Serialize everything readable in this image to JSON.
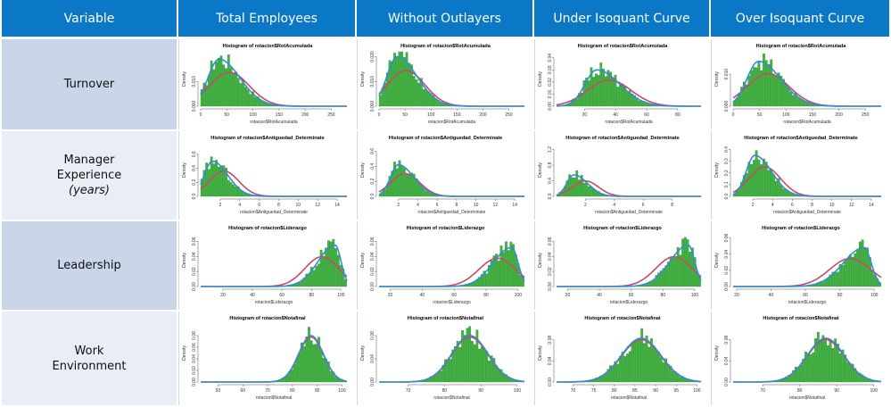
{
  "header": {
    "variable": "Variable",
    "columns": [
      "Total Employees",
      "Without Outlayers",
      "Under Isoquant Curve",
      "Over Isoquant Curve"
    ]
  },
  "rows": [
    {
      "label_lines": [
        "Turnover"
      ],
      "italic": ""
    },
    {
      "label_lines": [
        "Manager",
        "Experience"
      ],
      "italic": "(years)"
    },
    {
      "label_lines": [
        "Leadership"
      ],
      "italic": ""
    },
    {
      "label_lines": [
        "Work",
        "Environment"
      ],
      "italic": ""
    }
  ],
  "colors": {
    "header_bg": "#0a78c6",
    "bars": "#3fb53f",
    "normal_curve": "#c74a66",
    "density_curve": "#2f8fd0"
  },
  "chart_data": [
    {
      "type": "bar",
      "row": 0,
      "col": 0,
      "title": "Histogram of rotacion$RotAcumulada",
      "xlabel": "rotacion$RotAcumulada",
      "ylabel": "Density",
      "xlim": [
        0,
        280
      ],
      "ylim": [
        0,
        0.022
      ],
      "xticks": [
        0,
        50,
        100,
        150,
        200,
        250
      ],
      "yticks": [
        "0.000",
        "0.010"
      ],
      "ytick_vals": [
        0,
        0.01
      ],
      "mean": 55,
      "sd": 38,
      "mode": 35,
      "peak": 0.019,
      "skew": "right"
    },
    {
      "type": "bar",
      "row": 0,
      "col": 1,
      "title": "Histogram of rotacion$RotAcumulada",
      "xlabel": "rotacion$RotAcumulada",
      "ylabel": "Density",
      "xlim": [
        0,
        280
      ],
      "ylim": [
        0,
        0.022
      ],
      "xticks": [
        0,
        50,
        100,
        150,
        200,
        250
      ],
      "yticks": [
        "0.000",
        "0.010",
        "0.020"
      ],
      "ytick_vals": [
        0,
        0.01,
        0.02
      ],
      "mean": 52,
      "sd": 36,
      "mode": 35,
      "peak": 0.02,
      "skew": "right"
    },
    {
      "type": "bar",
      "row": 0,
      "col": 2,
      "title": "Histogram of rotacion$RotAcumulada",
      "xlabel": "rotacion$RotAcumulada",
      "ylabel": "Density",
      "xlim": [
        2,
        95
      ],
      "ylim": [
        0,
        0.045
      ],
      "xticks": [
        20,
        40,
        60,
        80
      ],
      "yticks": [
        "0.00",
        "0.01",
        "0.02",
        "0.03",
        "0.04"
      ],
      "ytick_vals": [
        0,
        0.01,
        0.02,
        0.03,
        0.04
      ],
      "mean": 36,
      "sd": 14,
      "mode": 28,
      "peak": 0.03,
      "skew": "right"
    },
    {
      "type": "bar",
      "row": 0,
      "col": 3,
      "title": "Histogram of rotacion$RotAcumulada",
      "xlabel": "rotacion$RotAcumulada",
      "ylabel": "Density",
      "xlim": [
        0,
        280
      ],
      "ylim": [
        0,
        0.017
      ],
      "xticks": [
        0,
        50,
        100,
        150,
        200,
        250
      ],
      "yticks": [
        "0.000",
        "0.010"
      ],
      "ytick_vals": [
        0,
        0.01
      ],
      "mean": 66,
      "sd": 40,
      "mode": 48,
      "peak": 0.014,
      "skew": "right"
    },
    {
      "type": "bar",
      "row": 1,
      "col": 0,
      "title": "Histogram of rotacion$Antiguedad_Determinate",
      "xlabel": "rotacion$Antiguedad_Determinate",
      "ylabel": "Density",
      "xlim": [
        0,
        15
      ],
      "ylim": [
        0,
        0.75
      ],
      "xticks": [
        2,
        4,
        6,
        8,
        10,
        12,
        14
      ],
      "yticks": [
        "0.0",
        "0.2",
        "0.4",
        "0.6"
      ],
      "ytick_vals": [
        0,
        0.2,
        0.4,
        0.6
      ],
      "mean": 2.4,
      "sd": 1.5,
      "mode": 1.2,
      "peak": 0.5,
      "skew": "right"
    },
    {
      "type": "bar",
      "row": 1,
      "col": 1,
      "title": "Histogram of rotacion$Antiguedad_Determinate",
      "xlabel": "rotacion$Antiguedad_Determinate",
      "ylabel": "Density",
      "xlim": [
        0,
        15
      ],
      "ylim": [
        0,
        0.7
      ],
      "xticks": [
        2,
        4,
        6,
        8,
        10,
        12,
        14
      ],
      "yticks": [
        "0.0",
        "0.2",
        "0.4",
        "0.6"
      ],
      "ytick_vals": [
        0,
        0.2,
        0.4,
        0.6
      ],
      "mean": 2.7,
      "sd": 1.5,
      "mode": 2,
      "peak": 0.42,
      "skew": "right"
    },
    {
      "type": "bar",
      "row": 1,
      "col": 2,
      "title": "Histogram of rotacion$Antiguedad_Determinate",
      "xlabel": "rotacion$Antiguedad_Determinate",
      "ylabel": "Density",
      "xlim": [
        0,
        10
      ],
      "ylim": [
        0,
        1.35
      ],
      "xticks": [
        2,
        4,
        6,
        8
      ],
      "yticks": [
        "0.0",
        "0.4",
        "0.8",
        "1.2"
      ],
      "ytick_vals": [
        0,
        0.4,
        0.8,
        1.2
      ],
      "mean": 2.0,
      "sd": 0.9,
      "mode": 1.2,
      "peak": 0.55,
      "skew": "right"
    },
    {
      "type": "bar",
      "row": 1,
      "col": 3,
      "title": "Histogram of rotacion$Antiguedad_Determinate",
      "xlabel": "rotacion$Antiguedad_Determinate",
      "ylabel": "Density",
      "xlim": [
        0,
        15
      ],
      "ylim": [
        0,
        0.45
      ],
      "xticks": [
        2,
        4,
        6,
        8,
        10,
        12,
        14
      ],
      "yticks": [
        "0.0",
        "0.1",
        "0.2",
        "0.3",
        "0.4"
      ],
      "ytick_vals": [
        0,
        0.1,
        0.2,
        0.3,
        0.4
      ],
      "mean": 3.2,
      "sd": 1.6,
      "mode": 2.2,
      "peak": 0.35,
      "skew": "right"
    },
    {
      "type": "bar",
      "row": 2,
      "col": 0,
      "title": "Histogram of rotacion$Liderazgo",
      "xlabel": "rotacion$Liderazgo",
      "ylabel": "Density",
      "xlim": [
        5,
        104
      ],
      "ylim": [
        0,
        0.07
      ],
      "xticks": [
        20,
        40,
        60,
        80,
        100
      ],
      "yticks": [
        "0.00",
        "0.02",
        "0.04",
        "0.06"
      ],
      "ytick_vals": [
        0,
        0.02,
        0.04,
        0.06
      ],
      "mean": 87,
      "sd": 11.5,
      "mode": 96,
      "peak": 0.055,
      "skew": "left"
    },
    {
      "type": "bar",
      "row": 2,
      "col": 1,
      "title": "Histogram of rotacion$Liderazgo",
      "xlabel": "rotacion$Liderazgo",
      "ylabel": "Density",
      "xlim": [
        13,
        104
      ],
      "ylim": [
        0,
        0.07
      ],
      "xticks": [
        20,
        40,
        60,
        80,
        100
      ],
      "yticks": [
        "0.00",
        "0.02",
        "0.04",
        "0.06"
      ],
      "ytick_vals": [
        0,
        0.02,
        0.04,
        0.06
      ],
      "mean": 87,
      "sd": 11.5,
      "mode": 96,
      "peak": 0.052,
      "skew": "left"
    },
    {
      "type": "bar",
      "row": 2,
      "col": 2,
      "title": "Histogram of rotacion$Liderazgo",
      "xlabel": "rotacion$Liderazgo",
      "ylabel": "Density",
      "xlim": [
        13,
        104
      ],
      "ylim": [
        0,
        0.07
      ],
      "xticks": [
        20,
        40,
        60,
        80,
        100
      ],
      "yticks": [
        "0.00",
        "0.02",
        "0.04",
        "0.06"
      ],
      "ytick_vals": [
        0,
        0.02,
        0.04,
        0.06
      ],
      "mean": 87,
      "sd": 11.5,
      "mode": 96,
      "peak": 0.055,
      "skew": "left"
    },
    {
      "type": "bar",
      "row": 2,
      "col": 3,
      "title": "Histogram of rotacion$Liderazgo",
      "xlabel": "rotacion$Liderazgo",
      "ylabel": "Density",
      "xlim": [
        18,
        104
      ],
      "ylim": [
        0,
        0.065
      ],
      "xticks": [
        20,
        40,
        60,
        80,
        100
      ],
      "yticks": [
        "0.00",
        "0.02",
        "0.04",
        "0.06"
      ],
      "ytick_vals": [
        0,
        0.02,
        0.04,
        0.06
      ],
      "mean": 86,
      "sd": 12,
      "mode": 94,
      "peak": 0.048,
      "skew": "left"
    },
    {
      "type": "bar",
      "row": 3,
      "col": 0,
      "title": "Histogram of rotacion$Notafinal",
      "xlabel": "rotacion$Notafinal",
      "ylabel": "Density",
      "xlim": [
        43,
        102
      ],
      "ylim": [
        0,
        0.1
      ],
      "xticks": [
        50,
        60,
        70,
        80,
        90,
        100
      ],
      "yticks": [
        "0.00",
        "0.02",
        "0.04",
        "0.06",
        "0.08"
      ],
      "ytick_vals": [
        0,
        0.02,
        0.04,
        0.06,
        0.08
      ],
      "mean": 87.5,
      "sd": 5,
      "mode": 87.5,
      "peak": 0.08,
      "skew": "none"
    },
    {
      "type": "bar",
      "row": 3,
      "col": 1,
      "title": "Histogram of rotacion$Notafinal",
      "xlabel": "rotacion$Notafinal",
      "ylabel": "Density",
      "xlim": [
        62,
        102
      ],
      "ylim": [
        0,
        0.1
      ],
      "xticks": [
        70,
        80,
        90,
        100
      ],
      "yticks": [
        "0.00",
        "0.04",
        "0.08"
      ],
      "ytick_vals": [
        0,
        0.04,
        0.08
      ],
      "mean": 87,
      "sd": 5,
      "mode": 87,
      "peak": 0.08,
      "skew": "none"
    },
    {
      "type": "bar",
      "row": 3,
      "col": 2,
      "title": "Histogram of rotacion$Notafinal",
      "xlabel": "rotacion$Notafinal",
      "ylabel": "Density",
      "xlim": [
        66,
        101
      ],
      "ylim": [
        0,
        0.11
      ],
      "xticks": [
        70,
        75,
        80,
        85,
        90,
        95,
        100
      ],
      "yticks": [
        "0.00",
        "0.04",
        "0.08"
      ],
      "ytick_vals": [
        0,
        0.04,
        0.08
      ],
      "mean": 86.5,
      "sd": 4.8,
      "mode": 86.5,
      "peak": 0.083,
      "skew": "none"
    },
    {
      "type": "bar",
      "row": 3,
      "col": 3,
      "title": "Histogram of rotacion$Notafinal",
      "xlabel": "rotacion$Notafinal",
      "ylabel": "Density",
      "xlim": [
        62,
        102
      ],
      "ylim": [
        0,
        0.11
      ],
      "xticks": [
        70,
        80,
        90,
        100
      ],
      "yticks": [
        "0.00",
        "0.04",
        "0.08"
      ],
      "ytick_vals": [
        0,
        0.04,
        0.08
      ],
      "mean": 87,
      "sd": 5,
      "mode": 87,
      "peak": 0.083,
      "skew": "none"
    }
  ]
}
